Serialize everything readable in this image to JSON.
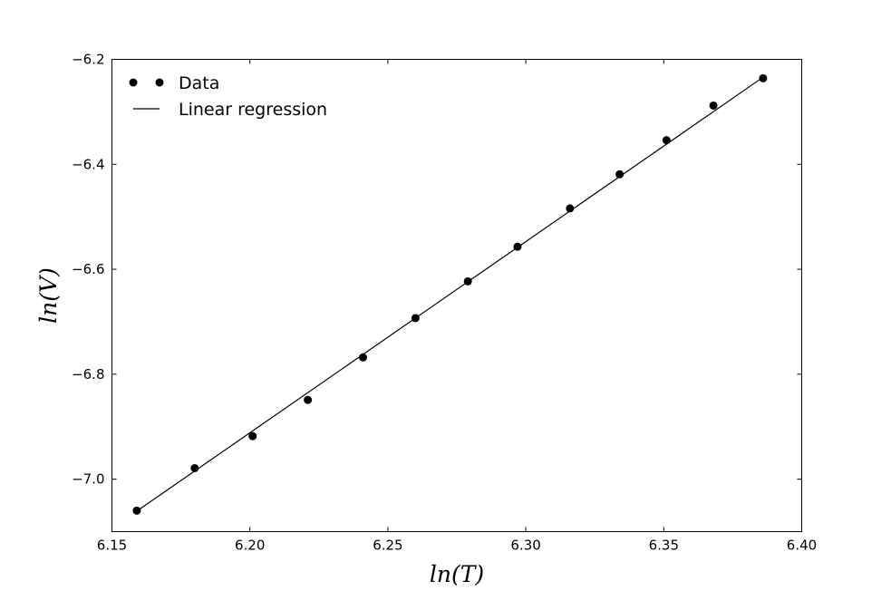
{
  "chart_data": {
    "type": "scatter",
    "title": "",
    "xlabel": "ln(T)",
    "ylabel": "ln(V)",
    "xlim": [
      6.15,
      6.4
    ],
    "ylim": [
      -7.1,
      -6.2
    ],
    "xticks": [
      6.15,
      6.2,
      6.25,
      6.3,
      6.35,
      6.4
    ],
    "xtick_labels": [
      "6.15",
      "6.20",
      "6.25",
      "6.30",
      "6.35",
      "6.40"
    ],
    "yticks": [
      -7.0,
      -6.8,
      -6.6,
      -6.4,
      -6.2
    ],
    "ytick_labels": [
      "−7.0",
      "−6.8",
      "−6.6",
      "−6.4",
      "−6.2"
    ],
    "grid": false,
    "legend_position": "top-left",
    "series": [
      {
        "name": "Data",
        "kind": "points",
        "color": "#000000",
        "points": [
          {
            "x": 6.159,
            "y": -7.06
          },
          {
            "x": 6.18,
            "y": -6.979
          },
          {
            "x": 6.201,
            "y": -6.918
          },
          {
            "x": 6.221,
            "y": -6.849
          },
          {
            "x": 6.241,
            "y": -6.768
          },
          {
            "x": 6.26,
            "y": -6.693
          },
          {
            "x": 6.279,
            "y": -6.623
          },
          {
            "x": 6.297,
            "y": -6.557
          },
          {
            "x": 6.316,
            "y": -6.484
          },
          {
            "x": 6.334,
            "y": -6.419
          },
          {
            "x": 6.351,
            "y": -6.354
          },
          {
            "x": 6.368,
            "y": -6.288
          },
          {
            "x": 6.386,
            "y": -6.236
          }
        ]
      },
      {
        "name": "Linear regression",
        "kind": "line",
        "color": "#000000",
        "points": [
          {
            "x": 6.159,
            "y": -7.061
          },
          {
            "x": 6.386,
            "y": -6.234
          }
        ]
      }
    ]
  }
}
